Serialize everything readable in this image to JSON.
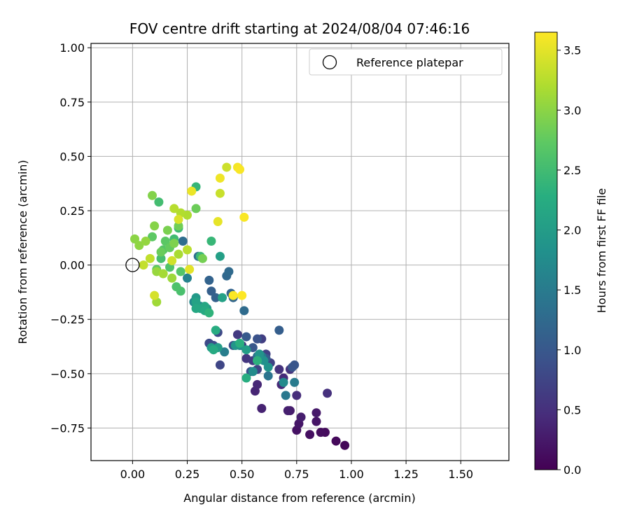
{
  "chart_data": {
    "type": "scatter",
    "title": "FOV centre drift starting at 2024/08/04 07:46:16",
    "xlabel": "Angular distance from reference (arcmin)",
    "ylabel": "Rotation from reference (arcmin)",
    "xlim": [
      -0.19,
      1.72
    ],
    "ylim": [
      -0.9,
      1.02
    ],
    "xticks": [
      0.0,
      0.25,
      0.5,
      0.75,
      1.0,
      1.25,
      1.5
    ],
    "yticks": [
      -0.75,
      -0.5,
      -0.25,
      0.0,
      0.25,
      0.5,
      0.75,
      1.0
    ],
    "xtick_labels": [
      "0.00",
      "0.25",
      "0.50",
      "0.75",
      "1.00",
      "1.25",
      "1.50"
    ],
    "ytick_labels": [
      "−0.75",
      "−0.50",
      "−0.25",
      "0.00",
      "0.25",
      "0.50",
      "0.75",
      "1.00"
    ],
    "grid": true,
    "colormap": "viridis",
    "colorbar": {
      "label": "Hours from first FF file",
      "range": [
        0,
        3.65
      ],
      "ticks": [
        0.0,
        0.5,
        1.0,
        1.5,
        2.0,
        2.5,
        3.0,
        3.5
      ],
      "tick_labels": [
        "0.0",
        "0.5",
        "1.0",
        "1.5",
        "2.0",
        "2.5",
        "3.0",
        "3.5"
      ]
    },
    "legend": {
      "placement": "top-right",
      "entries": [
        {
          "label": "Reference platepar",
          "marker": "open-circle"
        }
      ]
    },
    "reference_point": {
      "x": 0.0,
      "y": 0.0
    },
    "series": [
      {
        "points": [
          {
            "x": 0.97,
            "y": -0.83,
            "c": 0.05
          },
          {
            "x": 0.93,
            "y": -0.81,
            "c": 0.08
          },
          {
            "x": 0.88,
            "y": -0.77,
            "c": 0.1
          },
          {
            "x": 0.86,
            "y": -0.77,
            "c": 0.12
          },
          {
            "x": 0.81,
            "y": -0.78,
            "c": 0.15
          },
          {
            "x": 0.75,
            "y": -0.76,
            "c": 0.17
          },
          {
            "x": 0.84,
            "y": -0.72,
            "c": 0.2
          },
          {
            "x": 0.76,
            "y": -0.73,
            "c": 0.22
          },
          {
            "x": 0.84,
            "y": -0.68,
            "c": 0.25
          },
          {
            "x": 0.72,
            "y": -0.67,
            "c": 0.27
          },
          {
            "x": 0.77,
            "y": -0.7,
            "c": 0.3
          },
          {
            "x": 0.71,
            "y": -0.67,
            "c": 0.32
          },
          {
            "x": 0.59,
            "y": -0.66,
            "c": 0.35
          },
          {
            "x": 0.56,
            "y": -0.58,
            "c": 0.37
          },
          {
            "x": 0.57,
            "y": -0.55,
            "c": 0.4
          },
          {
            "x": 0.68,
            "y": -0.55,
            "c": 0.42
          },
          {
            "x": 0.69,
            "y": -0.52,
            "c": 0.45
          },
          {
            "x": 0.75,
            "y": -0.6,
            "c": 0.47
          },
          {
            "x": 0.89,
            "y": -0.59,
            "c": 0.5
          },
          {
            "x": 0.67,
            "y": -0.48,
            "c": 0.52
          },
          {
            "x": 0.72,
            "y": -0.48,
            "c": 0.55
          },
          {
            "x": 0.52,
            "y": -0.43,
            "c": 0.57
          },
          {
            "x": 0.55,
            "y": -0.44,
            "c": 0.6
          },
          {
            "x": 0.48,
            "y": -0.32,
            "c": 0.62
          },
          {
            "x": 0.5,
            "y": -0.37,
            "c": 0.65
          },
          {
            "x": 0.59,
            "y": -0.34,
            "c": 0.67
          },
          {
            "x": 0.61,
            "y": -0.41,
            "c": 0.7
          },
          {
            "x": 0.63,
            "y": -0.45,
            "c": 0.72
          },
          {
            "x": 0.57,
            "y": -0.48,
            "c": 0.75
          },
          {
            "x": 0.4,
            "y": -0.46,
            "c": 0.77
          },
          {
            "x": 0.39,
            "y": -0.31,
            "c": 0.8
          },
          {
            "x": 0.35,
            "y": -0.36,
            "c": 0.82
          },
          {
            "x": 0.37,
            "y": -0.37,
            "c": 0.85
          },
          {
            "x": 0.46,
            "y": -0.37,
            "c": 0.87
          },
          {
            "x": 0.54,
            "y": -0.49,
            "c": 0.9
          },
          {
            "x": 0.57,
            "y": -0.34,
            "c": 0.92
          },
          {
            "x": 0.73,
            "y": -0.47,
            "c": 0.95
          },
          {
            "x": 0.74,
            "y": -0.46,
            "c": 0.97
          },
          {
            "x": 0.55,
            "y": -0.38,
            "c": 1.0
          },
          {
            "x": 0.52,
            "y": -0.33,
            "c": 1.02
          },
          {
            "x": 0.61,
            "y": -0.43,
            "c": 1.05
          },
          {
            "x": 0.67,
            "y": -0.3,
            "c": 1.08
          },
          {
            "x": 0.36,
            "y": -0.12,
            "c": 1.1
          },
          {
            "x": 0.38,
            "y": -0.15,
            "c": 1.12
          },
          {
            "x": 0.35,
            "y": -0.07,
            "c": 1.15
          },
          {
            "x": 0.45,
            "y": -0.13,
            "c": 1.17
          },
          {
            "x": 0.46,
            "y": -0.15,
            "c": 1.2
          },
          {
            "x": 0.43,
            "y": -0.05,
            "c": 1.22
          },
          {
            "x": 0.44,
            "y": -0.03,
            "c": 1.25
          },
          {
            "x": 0.51,
            "y": -0.21,
            "c": 1.27
          },
          {
            "x": 0.23,
            "y": 0.11,
            "c": 1.3
          },
          {
            "x": 0.3,
            "y": 0.04,
            "c": 1.32
          },
          {
            "x": 0.57,
            "y": -0.42,
            "c": 1.35
          },
          {
            "x": 0.62,
            "y": -0.51,
            "c": 1.4
          },
          {
            "x": 0.7,
            "y": -0.6,
            "c": 1.45
          },
          {
            "x": 0.74,
            "y": -0.54,
            "c": 1.5
          },
          {
            "x": 0.59,
            "y": -0.42,
            "c": 1.52
          },
          {
            "x": 0.42,
            "y": -0.4,
            "c": 1.55
          },
          {
            "x": 0.25,
            "y": -0.06,
            "c": 1.6
          },
          {
            "x": 0.31,
            "y": -0.19,
            "c": 1.65
          },
          {
            "x": 0.28,
            "y": -0.17,
            "c": 1.7
          },
          {
            "x": 0.69,
            "y": -0.54,
            "c": 1.72
          },
          {
            "x": 0.55,
            "y": -0.49,
            "c": 1.75
          },
          {
            "x": 0.49,
            "y": -0.37,
            "c": 1.8
          },
          {
            "x": 0.6,
            "y": -0.44,
            "c": 1.82
          },
          {
            "x": 0.62,
            "y": -0.47,
            "c": 1.85
          },
          {
            "x": 0.58,
            "y": -0.41,
            "c": 1.88
          },
          {
            "x": 0.47,
            "y": -0.37,
            "c": 1.9
          },
          {
            "x": 0.34,
            "y": -0.2,
            "c": 1.92
          },
          {
            "x": 0.29,
            "y": -0.15,
            "c": 1.95
          },
          {
            "x": 0.36,
            "y": -0.38,
            "c": 1.97
          },
          {
            "x": 0.39,
            "y": -0.38,
            "c": 2.0
          },
          {
            "x": 0.52,
            "y": -0.39,
            "c": 2.02
          },
          {
            "x": 0.4,
            "y": 0.04,
            "c": 2.05
          },
          {
            "x": 0.41,
            "y": -0.15,
            "c": 2.07
          },
          {
            "x": 0.29,
            "y": -0.17,
            "c": 2.1
          },
          {
            "x": 0.31,
            "y": -0.2,
            "c": 2.12
          },
          {
            "x": 0.33,
            "y": -0.19,
            "c": 2.15
          },
          {
            "x": 0.29,
            "y": -0.2,
            "c": 2.17
          },
          {
            "x": 0.33,
            "y": -0.21,
            "c": 2.2
          },
          {
            "x": 0.37,
            "y": -0.39,
            "c": 2.22
          },
          {
            "x": 0.38,
            "y": -0.3,
            "c": 2.25
          },
          {
            "x": 0.52,
            "y": -0.52,
            "c": 2.27
          },
          {
            "x": 0.49,
            "y": -0.36,
            "c": 2.3
          },
          {
            "x": 0.57,
            "y": -0.44,
            "c": 2.32
          },
          {
            "x": 0.35,
            "y": -0.22,
            "c": 2.35
          },
          {
            "x": 0.29,
            "y": 0.36,
            "c": 2.4
          },
          {
            "x": 0.36,
            "y": 0.11,
            "c": 2.42
          },
          {
            "x": 0.31,
            "y": 0.04,
            "c": 2.45
          },
          {
            "x": 0.21,
            "y": 0.17,
            "c": 2.47
          },
          {
            "x": 0.19,
            "y": 0.12,
            "c": 2.5
          },
          {
            "x": 0.12,
            "y": 0.29,
            "c": 2.52
          },
          {
            "x": 0.13,
            "y": 0.03,
            "c": 2.55
          },
          {
            "x": 0.22,
            "y": -0.12,
            "c": 2.57
          },
          {
            "x": 0.2,
            "y": -0.1,
            "c": 2.6
          },
          {
            "x": 0.17,
            "y": -0.01,
            "c": 2.62
          },
          {
            "x": 0.22,
            "y": -0.03,
            "c": 2.65
          },
          {
            "x": 0.14,
            "y": 0.07,
            "c": 2.67
          },
          {
            "x": 0.15,
            "y": 0.11,
            "c": 2.7
          },
          {
            "x": 0.09,
            "y": 0.13,
            "c": 2.72
          },
          {
            "x": 0.11,
            "y": -0.02,
            "c": 2.75
          },
          {
            "x": 0.17,
            "y": 0.08,
            "c": 2.77
          },
          {
            "x": 0.13,
            "y": 0.06,
            "c": 2.8
          },
          {
            "x": 0.29,
            "y": 0.26,
            "c": 2.82
          },
          {
            "x": 0.21,
            "y": 0.18,
            "c": 2.85
          },
          {
            "x": 0.32,
            "y": 0.03,
            "c": 2.87
          },
          {
            "x": 0.16,
            "y": 0.16,
            "c": 2.9
          },
          {
            "x": 0.19,
            "y": 0.1,
            "c": 2.92
          },
          {
            "x": 0.09,
            "y": 0.32,
            "c": 2.95
          },
          {
            "x": 0.1,
            "y": 0.18,
            "c": 2.97
          },
          {
            "x": 0.01,
            "y": 0.12,
            "c": 3.0
          },
          {
            "x": 0.03,
            "y": 0.09,
            "c": 3.02
          },
          {
            "x": 0.06,
            "y": 0.11,
            "c": 3.05
          },
          {
            "x": 0.11,
            "y": -0.03,
            "c": 3.07
          },
          {
            "x": 0.18,
            "y": -0.06,
            "c": 3.1
          },
          {
            "x": 0.11,
            "y": -0.17,
            "c": 3.12
          },
          {
            "x": 0.14,
            "y": -0.04,
            "c": 3.15
          },
          {
            "x": 0.21,
            "y": 0.05,
            "c": 3.17
          },
          {
            "x": 0.25,
            "y": 0.23,
            "c": 3.2
          },
          {
            "x": 0.22,
            "y": 0.24,
            "c": 3.22
          },
          {
            "x": 0.19,
            "y": 0.26,
            "c": 3.25
          },
          {
            "x": 0.25,
            "y": 0.07,
            "c": 3.27
          },
          {
            "x": 0.08,
            "y": 0.03,
            "c": 3.3
          },
          {
            "x": 0.05,
            "y": 0.0,
            "c": 3.32
          },
          {
            "x": 0.4,
            "y": 0.33,
            "c": 3.35
          },
          {
            "x": 0.43,
            "y": 0.45,
            "c": 3.37
          },
          {
            "x": 0.18,
            "y": 0.02,
            "c": 3.4
          },
          {
            "x": 0.1,
            "y": -0.14,
            "c": 3.42
          },
          {
            "x": 0.21,
            "y": 0.21,
            "c": 3.45
          },
          {
            "x": 0.26,
            "y": -0.02,
            "c": 3.5
          },
          {
            "x": 0.39,
            "y": 0.2,
            "c": 3.52
          },
          {
            "x": 0.27,
            "y": 0.34,
            "c": 3.55
          },
          {
            "x": 0.4,
            "y": 0.4,
            "c": 3.57
          },
          {
            "x": 0.48,
            "y": 0.45,
            "c": 3.6
          },
          {
            "x": 0.49,
            "y": 0.44,
            "c": 3.62
          },
          {
            "x": 0.51,
            "y": 0.22,
            "c": 3.63
          },
          {
            "x": 0.46,
            "y": -0.14,
            "c": 3.64
          },
          {
            "x": 0.5,
            "y": -0.14,
            "c": 3.65
          }
        ]
      }
    ]
  }
}
